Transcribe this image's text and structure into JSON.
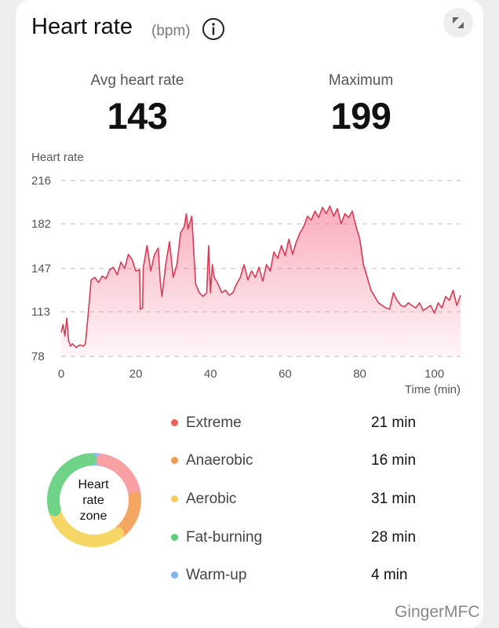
{
  "header": {
    "title": "Heart rate",
    "unit": "(bpm)",
    "info_icon": "info-icon",
    "expand_icon": "collapse-arrows-icon"
  },
  "stats": {
    "avg_label": "Avg heart rate",
    "avg_value": "143",
    "max_label": "Maximum",
    "max_value": "199"
  },
  "chart_data": {
    "type": "area",
    "title": "",
    "ylabel": "Heart rate",
    "xlabel": "Time (min)",
    "y_ticks": [
      "216",
      "182",
      "147",
      "113",
      "78"
    ],
    "x_ticks": [
      "0",
      "20",
      "40",
      "60",
      "80",
      "100"
    ],
    "ylim": [
      78,
      216
    ],
    "xlim": [
      0,
      107
    ],
    "line_color": "#d93a55",
    "fill_color": "#f56a86",
    "series": [
      {
        "name": "Heart rate",
        "x": [
          0,
          0.5,
          1,
          1.5,
          2,
          2.5,
          3,
          4,
          5,
          6,
          6.5,
          7,
          7.5,
          8,
          9,
          10,
          11,
          12,
          13,
          14,
          15,
          16,
          17,
          18,
          19,
          20,
          21,
          21.2,
          21.8,
          22,
          23,
          24,
          25,
          26,
          26.5,
          27,
          28,
          29,
          29.5,
          30,
          31,
          32,
          33,
          33.5,
          34,
          35,
          36,
          37,
          38,
          39,
          39.5,
          40,
          40.5,
          41,
          42,
          43,
          44,
          45,
          46,
          47,
          48,
          49,
          50,
          51,
          52,
          53,
          54,
          55,
          56,
          57,
          58,
          59,
          60,
          61,
          62,
          63,
          64,
          65,
          66,
          67,
          68,
          69,
          70,
          71,
          72,
          73,
          74,
          75,
          76,
          77,
          78,
          79,
          80,
          81,
          82,
          83,
          84,
          85,
          86,
          87,
          88,
          89,
          90,
          91,
          92,
          93,
          94,
          95,
          96,
          97,
          98,
          99,
          100,
          101,
          102,
          103,
          104,
          105,
          106,
          107
        ],
        "values": [
          97,
          103,
          94,
          108,
          90,
          86,
          88,
          85,
          87,
          86,
          88,
          104,
          120,
          138,
          140,
          136,
          141,
          139,
          146,
          148,
          142,
          152,
          147,
          158,
          154,
          145,
          146,
          115,
          116,
          148,
          165,
          145,
          158,
          163,
          138,
          125,
          150,
          168,
          155,
          140,
          150,
          175,
          180,
          190,
          178,
          188,
          135,
          128,
          125,
          128,
          165,
          128,
          150,
          140,
          135,
          128,
          130,
          126,
          128,
          135,
          140,
          150,
          138,
          145,
          140,
          148,
          137,
          150,
          145,
          160,
          155,
          165,
          157,
          170,
          158,
          168,
          175,
          180,
          188,
          185,
          192,
          187,
          195,
          190,
          196,
          188,
          194,
          182,
          190,
          187,
          192,
          180,
          170,
          150,
          140,
          130,
          125,
          120,
          118,
          116,
          115,
          128,
          122,
          118,
          117,
          120,
          118,
          116,
          120,
          114,
          116,
          118,
          112,
          120,
          116,
          125,
          122,
          130,
          118,
          126
        ]
      }
    ]
  },
  "zones": [
    {
      "label": "Extreme",
      "value": "21 min",
      "color": "#e8625c"
    },
    {
      "label": "Anaerobic",
      "value": "16 min",
      "color": "#f19a50"
    },
    {
      "label": "Aerobic",
      "value": "31 min",
      "color": "#f5cf5a"
    },
    {
      "label": "Fat-burning",
      "value": "28 min",
      "color": "#5ccd7c"
    },
    {
      "label": "Warm-up",
      "value": "4 min",
      "color": "#7fb3ee"
    }
  ],
  "donut": {
    "center_line1": "Heart",
    "center_line2": "rate",
    "center_line3": "zone",
    "minutes": [
      21,
      16,
      31,
      28,
      4
    ],
    "colors": [
      "#f8a0a4",
      "#f5a663",
      "#f6d766",
      "#6fd487",
      "#8fbdf1"
    ]
  },
  "watermark": "GingerMFC"
}
